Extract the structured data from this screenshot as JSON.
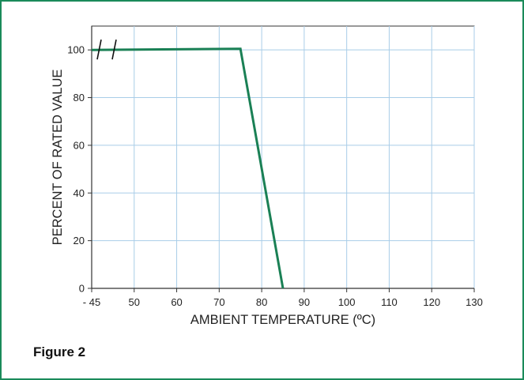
{
  "caption": "Figure 2",
  "colors": {
    "frame": "#1a8a5a",
    "grid": "#a9cde8",
    "line": "#1a8055",
    "axis": "#333333"
  },
  "chart_data": {
    "type": "line",
    "xlabel": "AMBIENT TEMPERATURE (ºC)",
    "ylabel": "PERCENT OF RATED VALUE",
    "x_tick_labels": [
      "- 45",
      "50",
      "60",
      "70",
      "80",
      "90",
      "100",
      "110",
      "120",
      "130"
    ],
    "x_ticks": [
      -45,
      50,
      60,
      70,
      80,
      90,
      100,
      110,
      120,
      130
    ],
    "y_tick_labels": [
      "0",
      "20",
      "40",
      "60",
      "80",
      "100"
    ],
    "y_ticks": [
      0,
      20,
      40,
      60,
      80,
      100
    ],
    "ylim": [
      0,
      110
    ],
    "axis_break": "x-axis break between -45 and 50 (double slash marks at 100)",
    "grid": true,
    "series": [
      {
        "x": [
          -45,
          75,
          85
        ],
        "y": [
          100,
          100.5,
          0
        ]
      }
    ]
  }
}
